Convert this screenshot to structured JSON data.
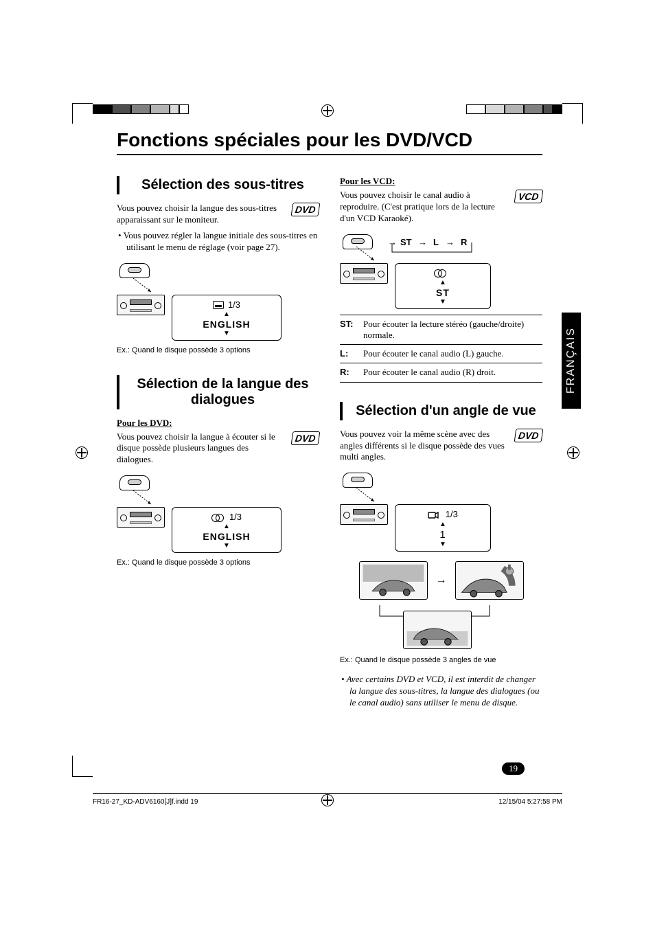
{
  "meta": {
    "lang_tab": "FRANÇAIS",
    "page_number": "19",
    "footer_left": "FR16-27_KD-ADV6160[J]f.indd   19",
    "footer_right": "12/15/04   5:27:58 PM"
  },
  "title": "Fonctions spéciales pour les DVD/VCD",
  "badges": {
    "dvd": "DVD",
    "vcd": "VCD"
  },
  "sections": {
    "subtitle": {
      "heading": "Sélection des sous-titres",
      "intro": "Vous pouvez choisir la langue des sous-titres apparaissant sur le moniteur.",
      "bullet": "Vous pouvez régler la langue initiale des sous-titres en utilisant le menu de réglage (voir page 27).",
      "osd_counter": "1/3",
      "osd_value": "ENGLISH",
      "caption": "Ex.: Quand le disque possède 3 options"
    },
    "audio": {
      "heading": "Sélection de la langue des dialogues",
      "dvd_label": "Pour les DVD:",
      "dvd_intro": "Vous pouvez choisir la langue à écouter si le disque possède plusieurs langues des dialogues.",
      "osd_counter": "1/3",
      "osd_value": "ENGLISH",
      "caption": "Ex.: Quand le disque possède 3 options",
      "vcd_label": "Pour les VCD:",
      "vcd_intro": "Vous pouvez choisir le canal audio à reproduire. (C'est pratique lors de la lecture d'un VCD Karaoké).",
      "flow": {
        "st": "ST",
        "l": "L",
        "r": "R"
      },
      "osd2_value": "ST",
      "defs": [
        {
          "key": "ST:",
          "val": "Pour écouter la lecture stéréo (gauche/droite) normale."
        },
        {
          "key": "L:",
          "val": "Pour écouter le canal audio (L) gauche."
        },
        {
          "key": "R:",
          "val": "Pour écouter le canal audio (R) droit."
        }
      ]
    },
    "angle": {
      "heading": "Sélection d'un angle de vue",
      "intro": "Vous pouvez voir la même scène avec des angles différents si le disque possède des vues multi angles.",
      "osd_counter": "1/3",
      "osd_value": "1",
      "caption": "Ex.: Quand le disque possède 3 angles de vue",
      "note": "Avec certains DVD et VCD, il est interdit de changer la langue des sous-titres, la langue des dialogues (ou le canal audio) sans utiliser le menu de disque."
    }
  },
  "colors": {
    "text": "#000000",
    "bg": "#ffffff",
    "reg_bars_left": [
      "#000000",
      "#4d4d4d",
      "#808080",
      "#b3b3b3",
      "#d9d9d9",
      "#ffffff"
    ],
    "reg_bars_right": [
      "#ffffff",
      "#d9d9d9",
      "#b3b3b3",
      "#808080",
      "#4d4d4d",
      "#000000"
    ],
    "lang_tab_bg": "#000000"
  },
  "reg_bar_widths": [
    28,
    28,
    28,
    28,
    14,
    14
  ]
}
